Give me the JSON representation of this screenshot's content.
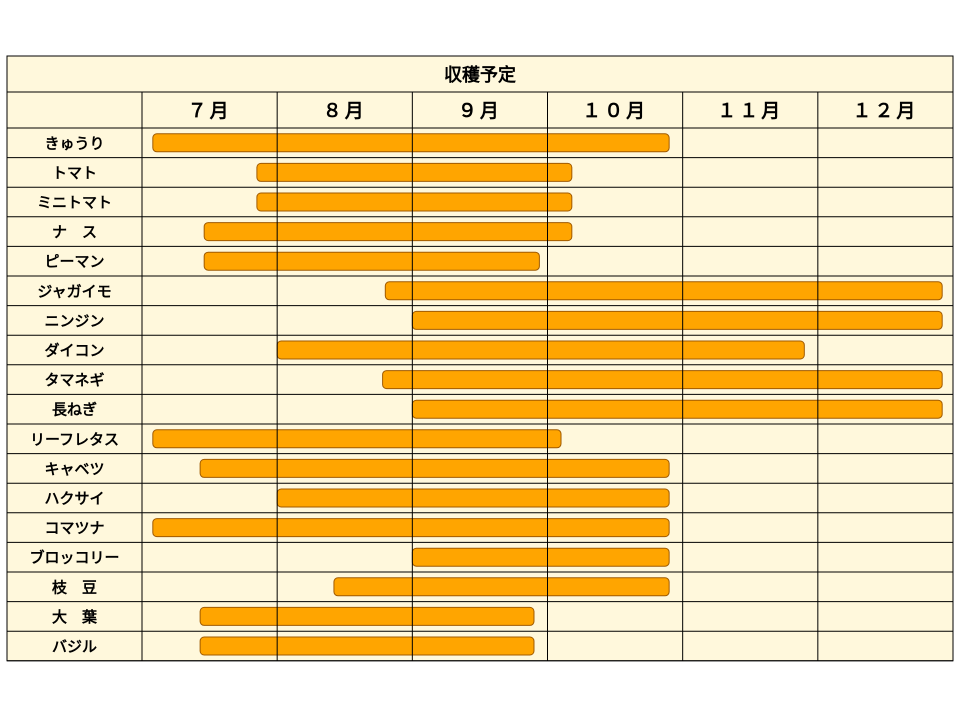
{
  "chart_data": {
    "type": "gantt",
    "title": "収穫予定",
    "months": [
      "７月",
      "８月",
      "９月",
      "１０月",
      "１１月",
      "１２月"
    ],
    "bar_color": "#FFA500",
    "background_color": "#FFF8DC",
    "rows": [
      {
        "label": "きゅうり",
        "start": 0.08,
        "end": 3.9
      },
      {
        "label": "トマト",
        "start": 0.85,
        "end": 3.18
      },
      {
        "label": "ミニトマト",
        "start": 0.85,
        "end": 3.18
      },
      {
        "label": "ナ　ス",
        "start": 0.46,
        "end": 3.18
      },
      {
        "label": "ピーマン",
        "start": 0.46,
        "end": 2.94
      },
      {
        "label": "ジャガイモ",
        "start": 1.8,
        "end": 5.92
      },
      {
        "label": "ニンジン",
        "start": 2.0,
        "end": 5.92
      },
      {
        "label": "ダイコン",
        "start": 1.0,
        "end": 4.9
      },
      {
        "label": "タマネギ",
        "start": 1.78,
        "end": 5.92
      },
      {
        "label": "長ねぎ",
        "start": 2.0,
        "end": 5.92
      },
      {
        "label": "リーフレタス",
        "start": 0.08,
        "end": 3.1
      },
      {
        "label": "キャベツ",
        "start": 0.43,
        "end": 3.9
      },
      {
        "label": "ハクサイ",
        "start": 1.0,
        "end": 3.9
      },
      {
        "label": "コマツナ",
        "start": 0.08,
        "end": 3.9
      },
      {
        "label": "ブロッコリー",
        "start": 2.0,
        "end": 3.9
      },
      {
        "label": "枝　豆",
        "start": 1.42,
        "end": 3.9
      },
      {
        "label": "大　葉",
        "start": 0.43,
        "end": 2.9
      },
      {
        "label": "バジル",
        "start": 0.43,
        "end": 2.9
      }
    ]
  }
}
